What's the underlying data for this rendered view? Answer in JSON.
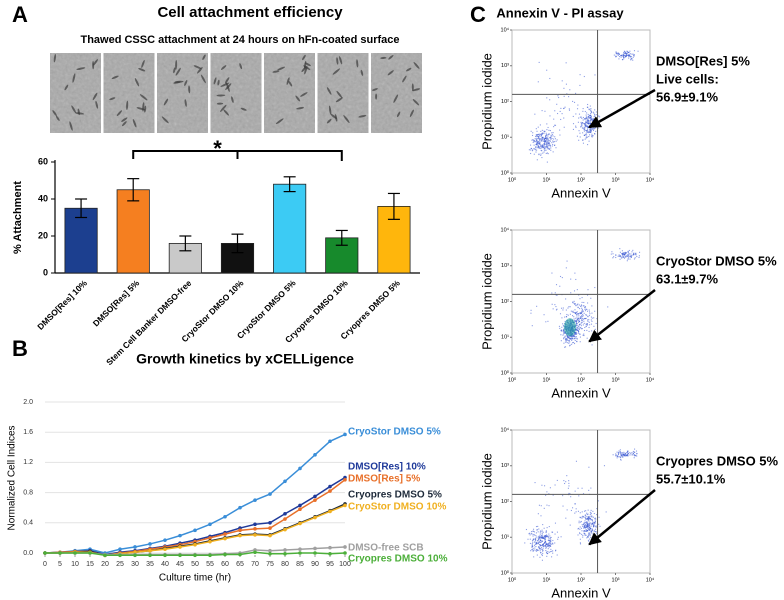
{
  "chart_data": [
    {
      "type": "bar",
      "panel": "A",
      "title": "Cell attachment efficiency",
      "subtitle": "Thawed CSSC attachment at 24 hours on hFn-coated surface",
      "ylabel": "% Attachment",
      "categories": [
        "DMSO[Res] 10%",
        "DMSO[Res] 5%",
        "Stem Cell Banker DMSO-free",
        "CryoStor DMSO 10%",
        "CryoStor DMSO 5%",
        "Cryopres DMSO 10%",
        "Cryopres DMSO 5%"
      ],
      "values": [
        35,
        45,
        16,
        16,
        48,
        19,
        36
      ],
      "errors": [
        5,
        6,
        4,
        5,
        4,
        4,
        7
      ],
      "colors": [
        "#1c3f8f",
        "#f57f20",
        "#c9c9c9",
        "#111111",
        "#3ccbf4",
        "#178a2c",
        "#ffb60c"
      ],
      "ylim": [
        0,
        60
      ],
      "yticks": [
        0,
        20,
        40,
        60
      ],
      "annotations": [
        "*"
      ]
    },
    {
      "type": "line",
      "panel": "B",
      "title": "Growth kinetics by xCELLigence",
      "xlabel": "Culture time (hr)",
      "ylabel": "Normalized Cell Indices",
      "x": [
        0,
        5,
        10,
        15,
        20,
        25,
        30,
        35,
        40,
        45,
        50,
        55,
        60,
        65,
        70,
        75,
        80,
        85,
        90,
        95,
        100
      ],
      "xlim": [
        0,
        100
      ],
      "xticks": [
        0,
        5,
        10,
        15,
        20,
        25,
        30,
        35,
        40,
        45,
        50,
        55,
        60,
        65,
        70,
        75,
        80,
        85,
        90,
        95,
        100
      ],
      "ylim": [
        0,
        2
      ],
      "yticks": [
        {
          "value": 0,
          "label": "0.0"
        },
        0.4,
        0.8,
        1.2,
        1.6,
        {
          "value": 2,
          "label": "2.0"
        }
      ],
      "grid": true,
      "series": [
        {
          "name": "CryoStor DMSO 5%",
          "color": "#3a8ed8",
          "values": [
            0,
            0.01,
            0.03,
            0.05,
            0,
            0.05,
            0.08,
            0.12,
            0.17,
            0.23,
            0.3,
            0.38,
            0.48,
            0.6,
            0.7,
            0.78,
            0.95,
            1.12,
            1.3,
            1.48,
            1.57
          ]
        },
        {
          "name": "DMSO[Res] 10%",
          "color": "#1f3a9a",
          "values": [
            0,
            0.01,
            0.02,
            0.03,
            -0.02,
            0.01,
            0.03,
            0.06,
            0.09,
            0.13,
            0.17,
            0.22,
            0.27,
            0.33,
            0.38,
            0.4,
            0.52,
            0.63,
            0.75,
            0.88,
            1.0
          ]
        },
        {
          "name": "DMSO[Res] 5%",
          "color": "#e8702a",
          "values": [
            0,
            0.01,
            0.02,
            0.02,
            -0.03,
            0,
            0.02,
            0.05,
            0.08,
            0.11,
            0.15,
            0.2,
            0.25,
            0.3,
            0.32,
            0.33,
            0.45,
            0.58,
            0.7,
            0.82,
            0.97
          ]
        },
        {
          "name": "Cryopres DMSO 5%",
          "color": "#1e2a3a",
          "values": [
            0,
            0,
            0.01,
            0.02,
            -0.03,
            -0.01,
            0.01,
            0.03,
            0.06,
            0.09,
            0.12,
            0.16,
            0.2,
            0.24,
            0.25,
            0.24,
            0.32,
            0.4,
            0.48,
            0.56,
            0.65
          ]
        },
        {
          "name": "CryoStor DMSO 10%",
          "color": "#f0b020",
          "values": [
            0,
            0,
            0.01,
            0.01,
            -0.03,
            -0.01,
            0.01,
            0.03,
            0.05,
            0.08,
            0.11,
            0.15,
            0.19,
            0.23,
            0.24,
            0.23,
            0.31,
            0.39,
            0.47,
            0.55,
            0.63
          ]
        },
        {
          "name": "DMSO-free SCB",
          "color": "#a0a0a0",
          "values": [
            0,
            0,
            0,
            0,
            -0.02,
            -0.02,
            -0.02,
            -0.02,
            -0.02,
            -0.02,
            -0.02,
            -0.02,
            -0.01,
            0,
            0.04,
            0.03,
            0.04,
            0.05,
            0.06,
            0.07,
            0.08
          ]
        },
        {
          "name": "Cryopres DMSO 10%",
          "color": "#4caf3a",
          "values": [
            0,
            0,
            0,
            0,
            -0.03,
            -0.03,
            -0.03,
            -0.03,
            -0.03,
            -0.03,
            -0.03,
            -0.03,
            -0.02,
            -0.02,
            0.01,
            -0.01,
            -0.01,
            0,
            0,
            -0.01,
            0
          ]
        }
      ]
    },
    {
      "type": "scatter",
      "panel": "C",
      "title": "Annexin V - PI assay",
      "log_scale": true,
      "color": "#2f4fd0",
      "xlabel": "Annexin V",
      "ylabel": "Propidium iodide",
      "xlim": [
        1,
        10000
      ],
      "ylim": [
        1,
        10000
      ],
      "xticks": [
        {
          "value": 1,
          "label": "10⁰"
        },
        {
          "value": 10,
          "label": "10¹"
        },
        {
          "value": 100,
          "label": "10²"
        },
        {
          "value": 1000,
          "label": "10³"
        },
        {
          "value": 10000,
          "label": "10⁴"
        }
      ],
      "yticks": [
        {
          "value": 1,
          "label": "10⁰"
        },
        {
          "value": 10,
          "label": "10¹"
        },
        {
          "value": 100,
          "label": "10²"
        },
        {
          "value": 1000,
          "label": "10³"
        },
        {
          "value": 10000,
          "label": "10⁴"
        }
      ],
      "annotations": [
        "DMSO[Res] 5%",
        "Live cells:",
        "56.9±9.1%"
      ]
    },
    {
      "type": "scatter",
      "log_scale": true,
      "color": "#2f4fd0",
      "xlabel": "Annexin V",
      "ylabel": "Propidium iodide",
      "xlim": [
        1,
        10000
      ],
      "ylim": [
        1,
        10000
      ],
      "xticks": [
        {
          "value": 1,
          "label": "10⁰"
        },
        {
          "value": 10,
          "label": "10¹"
        },
        {
          "value": 100,
          "label": "10²"
        },
        {
          "value": 1000,
          "label": "10³"
        },
        {
          "value": 10000,
          "label": "10⁴"
        }
      ],
      "yticks": [
        {
          "value": 1,
          "label": "10⁰"
        },
        {
          "value": 10,
          "label": "10¹"
        },
        {
          "value": 100,
          "label": "10²"
        },
        {
          "value": 1000,
          "label": "10³"
        },
        {
          "value": 10000,
          "label": "10⁴"
        }
      ],
      "annotations": [
        "CryoStor DMSO 5%",
        "63.1±9.7%"
      ]
    },
    {
      "type": "scatter",
      "log_scale": true,
      "color": "#2f4fd0",
      "xlabel": "Annexin V",
      "ylabel": "Propidium iodide",
      "xlim": [
        1,
        10000
      ],
      "ylim": [
        1,
        10000
      ],
      "xticks": [
        {
          "value": 1,
          "label": "10⁰"
        },
        {
          "value": 10,
          "label": "10¹"
        },
        {
          "value": 100,
          "label": "10²"
        },
        {
          "value": 1000,
          "label": "10³"
        },
        {
          "value": 10000,
          "label": "10⁴"
        }
      ],
      "yticks": [
        {
          "value": 1,
          "label": "10⁰"
        },
        {
          "value": 10,
          "label": "10¹"
        },
        {
          "value": 100,
          "label": "10²"
        },
        {
          "value": 1000,
          "label": "10³"
        },
        {
          "value": 10000,
          "label": "10⁴"
        }
      ],
      "annotations": [
        "Cryopres DMSO 5%",
        "55.7±10.1%"
      ]
    }
  ]
}
